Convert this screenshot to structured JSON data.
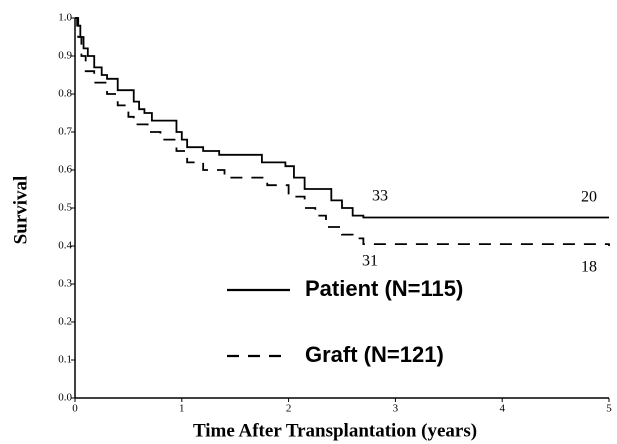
{
  "chart_data": {
    "type": "line",
    "step": true,
    "x_label": "Time After Transplantation (years)",
    "y_label": "Survival",
    "xlim": [
      0,
      5
    ],
    "ylim": [
      0,
      1
    ],
    "xticks": [
      0,
      1,
      2,
      3,
      4,
      5
    ],
    "yticks": [
      {
        "value": 0,
        "label": "0.0"
      },
      0.1,
      0.2,
      0.3,
      0.4,
      0.5,
      0.6,
      0.7,
      0.8,
      0.9,
      {
        "value": 1,
        "label": "1.0"
      }
    ],
    "legend": "lower center",
    "series": [
      {
        "name": "Patient (N=115)",
        "color": "#000000",
        "style": "solid",
        "x": [
          0,
          0.02,
          0.05,
          0.08,
          0.12,
          0.18,
          0.25,
          0.3,
          0.4,
          0.55,
          0.6,
          0.65,
          0.72,
          0.95,
          1.0,
          1.05,
          1.2,
          1.35,
          1.75,
          1.97,
          2.05,
          2.15,
          2.4,
          2.5,
          2.6,
          2.7,
          5
        ],
        "values": [
          1.0,
          0.98,
          0.95,
          0.92,
          0.9,
          0.87,
          0.85,
          0.84,
          0.81,
          0.78,
          0.76,
          0.75,
          0.73,
          0.7,
          0.68,
          0.66,
          0.65,
          0.64,
          0.62,
          0.61,
          0.58,
          0.55,
          0.52,
          0.5,
          0.48,
          0.475,
          0.475
        ]
      },
      {
        "name": "Graft (N=121)",
        "color": "#000000",
        "style": "dashed",
        "x": [
          0,
          0.03,
          0.06,
          0.1,
          0.18,
          0.3,
          0.4,
          0.5,
          0.55,
          0.68,
          0.8,
          0.95,
          1.05,
          1.2,
          1.4,
          1.8,
          2.0,
          2.15,
          2.25,
          2.35,
          2.5,
          2.6,
          2.7,
          5
        ],
        "values": [
          1.0,
          0.95,
          0.9,
          0.86,
          0.83,
          0.8,
          0.77,
          0.74,
          0.72,
          0.7,
          0.68,
          0.65,
          0.62,
          0.6,
          0.58,
          0.56,
          0.53,
          0.5,
          0.48,
          0.45,
          0.43,
          0.42,
          0.405,
          0.4
        ]
      }
    ],
    "annotations": [
      "33",
      "20",
      "31",
      "18"
    ]
  }
}
